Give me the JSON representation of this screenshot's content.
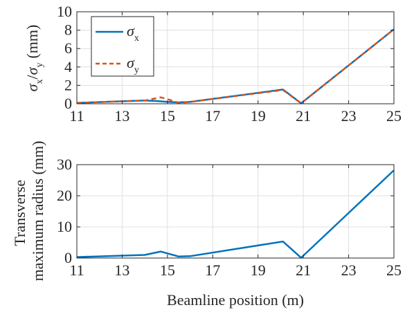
{
  "chart_data": [
    {
      "type": "line",
      "ylabel_parts": {
        "sym1": "σ",
        "sub1": "x",
        "slash": "/",
        "sym2": "σ",
        "sub2": "y",
        "unit": "(mm)"
      },
      "xlim": [
        11,
        25
      ],
      "ylim": [
        0,
        10
      ],
      "xticks": [
        11,
        13,
        15,
        17,
        19,
        21,
        23,
        25
      ],
      "yticks": [
        0,
        2,
        4,
        6,
        8,
        10
      ],
      "grid": true,
      "legend_position": "top-left",
      "series": [
        {
          "name": "σx",
          "name_symbol": "σ",
          "name_sub": "x",
          "color": "#0072BD",
          "style": "solid",
          "x": [
            11,
            14,
            14.5,
            15,
            15.5,
            16,
            20.1,
            20.9,
            25
          ],
          "y": [
            0.1,
            0.35,
            0.3,
            0.2,
            0.15,
            0.2,
            1.55,
            0.05,
            8.1
          ]
        },
        {
          "name": "σy",
          "name_symbol": "σ",
          "name_sub": "y",
          "color": "#D95319",
          "style": "dashed",
          "x": [
            11,
            14,
            14.7,
            15,
            15.5,
            16,
            20.1,
            20.9,
            25
          ],
          "y": [
            0.1,
            0.35,
            0.7,
            0.5,
            0.1,
            0.2,
            1.5,
            0.05,
            8.1
          ]
        }
      ]
    },
    {
      "type": "line",
      "ylabel_lines": [
        "Transverse",
        "maximum radius (mm)"
      ],
      "xlabel": "Beamline position (m)",
      "xlim": [
        11,
        25
      ],
      "ylim": [
        0,
        30
      ],
      "xticks": [
        11,
        13,
        15,
        17,
        19,
        21,
        23,
        25
      ],
      "yticks": [
        0,
        10,
        20,
        30
      ],
      "grid": true,
      "series": [
        {
          "color": "#0072BD",
          "style": "solid",
          "x": [
            11,
            14,
            14.7,
            15.5,
            16,
            20.1,
            20.9,
            25
          ],
          "y": [
            0.3,
            1.0,
            2.1,
            0.5,
            0.6,
            5.3,
            0.1,
            28.2
          ]
        }
      ]
    }
  ]
}
